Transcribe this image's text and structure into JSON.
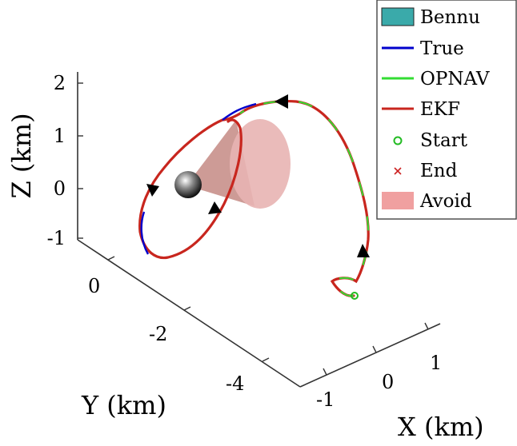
{
  "chart_data": {
    "type": "line3d",
    "title": "",
    "xlabel": "X (km)",
    "ylabel": "Y (km)",
    "zlabel": "Z (km)",
    "x_ticks": [
      -1,
      0,
      1
    ],
    "y_ticks": [
      0,
      -2,
      -4
    ],
    "z_ticks": [
      -1,
      0,
      1,
      2
    ],
    "xlim": [
      -1.8,
      1.8
    ],
    "ylim": [
      -5.2,
      1.0
    ],
    "zlim": [
      -1.1,
      2.4
    ],
    "grid": false,
    "legend_position": "top-right",
    "legend": [
      {
        "name": "Bennu",
        "symbol": "patch",
        "color": "#3aaaaa"
      },
      {
        "name": "True",
        "symbol": "line",
        "color": "#0000cc"
      },
      {
        "name": "OPNAV",
        "symbol": "line",
        "color": "#33dd33"
      },
      {
        "name": "EKF",
        "symbol": "line",
        "color": "#c8261e"
      },
      {
        "name": "Start",
        "symbol": "circle",
        "color": "#22bb22"
      },
      {
        "name": "End",
        "symbol": "cross",
        "color": "#cc2222"
      },
      {
        "name": "Avoid",
        "symbol": "patch",
        "color": "#f0a0a0"
      }
    ],
    "trajectory_xyz": [
      [
        1.1,
        -3.7,
        -1.35
      ],
      [
        1.15,
        -3.4,
        -1.4
      ],
      [
        1.05,
        -3.3,
        -1.3
      ],
      [
        1.2,
        -3.0,
        -0.8
      ],
      [
        1.25,
        -2.5,
        0.1
      ],
      [
        1.15,
        -2.0,
        0.9
      ],
      [
        0.9,
        -1.4,
        1.5
      ],
      [
        0.55,
        -1.0,
        1.65
      ],
      [
        0.3,
        -0.5,
        1.45
      ],
      [
        0.15,
        0.0,
        0.85
      ],
      [
        0.1,
        0.2,
        0.0
      ],
      [
        0.05,
        -0.1,
        -0.6
      ],
      [
        -0.1,
        -0.7,
        -0.85
      ],
      [
        -0.2,
        -1.3,
        -0.75
      ],
      [
        -0.25,
        -1.6,
        -0.4
      ],
      [
        -0.25,
        -1.8,
        0.05
      ],
      [
        -0.15,
        -1.7,
        0.65
      ],
      [
        0.0,
        -1.1,
        1.3
      ],
      [
        0.05,
        -0.9,
        1.4
      ],
      [
        0.1,
        -0.5,
        1.25
      ],
      [
        0.2,
        -0.2,
        0.8
      ],
      [
        0.15,
        -0.1,
        0.2
      ],
      [
        0.0,
        -0.2,
        -0.2
      ],
      [
        -0.05,
        -0.3,
        0.0
      ]
    ],
    "start_xyz": [
      1.1,
      -3.7,
      -1.35
    ],
    "bennu_xyz": [
      0,
      0,
      0
    ],
    "direction_arrows_at_index": [
      4,
      8,
      13,
      18
    ]
  },
  "colors": {
    "true_line": "#0000cc",
    "opnav_line": "#33dd33",
    "ekf_line": "#c8261e",
    "cone_fill": "#e8a8a8",
    "bennu_fill": "#444444"
  }
}
